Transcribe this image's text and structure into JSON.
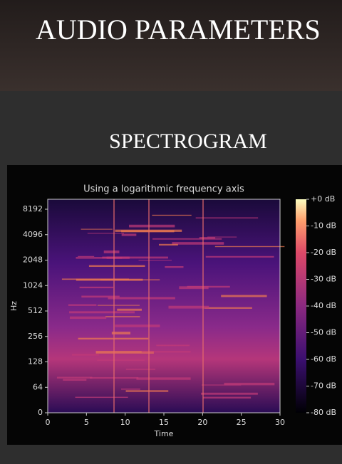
{
  "header": {
    "title": "AUDIO PARAMETERS"
  },
  "section": {
    "title": "SPECTROGRAM"
  },
  "figure": {
    "title": "Using a logarithmic frequency axis",
    "x_label": "Time",
    "y_label": "Hz",
    "xlim": [
      0,
      30
    ],
    "xticks": [
      0,
      5,
      10,
      15,
      20,
      25,
      30
    ],
    "yticks": [
      0,
      64,
      128,
      256,
      512,
      1024,
      2048,
      4096,
      8192
    ],
    "colorbar_lim": [
      -80,
      0
    ],
    "colorbar_ticks": [
      {
        "value": 0,
        "label": "+0 dB"
      },
      {
        "value": -10,
        "label": "-10 dB"
      },
      {
        "value": -20,
        "label": "-20 dB"
      },
      {
        "value": -30,
        "label": "-30 dB"
      },
      {
        "value": -40,
        "label": "-40 dB"
      },
      {
        "value": -50,
        "label": "-50 dB"
      },
      {
        "value": -60,
        "label": "-60 dB"
      },
      {
        "value": -70,
        "label": "-70 dB"
      },
      {
        "value": -80,
        "label": "-80 dB"
      }
    ]
  }
}
